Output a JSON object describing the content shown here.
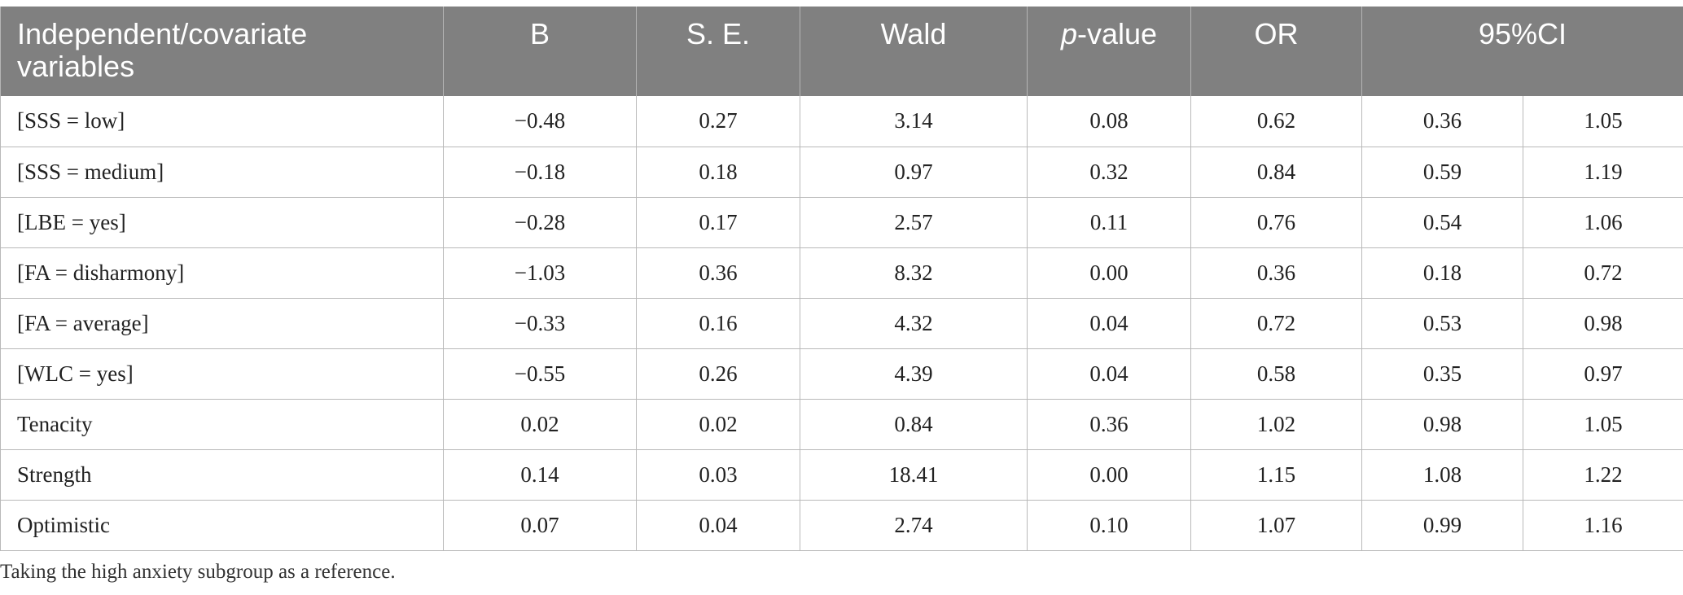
{
  "table": {
    "headers": {
      "variable": "Independent/covariate variables",
      "b": "B",
      "se": "S. E.",
      "wald": "Wald",
      "p_italic": "p",
      "p_rest": "-value",
      "or": "OR",
      "ci": "95%CI"
    },
    "rows": [
      {
        "variable": "[SSS = low]",
        "b": "−0.48",
        "se": "0.27",
        "wald": "3.14",
        "p": "0.08",
        "or": "0.62",
        "ci_low": "0.36",
        "ci_high": "1.05"
      },
      {
        "variable": "[SSS = medium]",
        "b": "−0.18",
        "se": "0.18",
        "wald": "0.97",
        "p": "0.32",
        "or": "0.84",
        "ci_low": "0.59",
        "ci_high": "1.19"
      },
      {
        "variable": "[LBE = yes]",
        "b": "−0.28",
        "se": "0.17",
        "wald": "2.57",
        "p": "0.11",
        "or": "0.76",
        "ci_low": "0.54",
        "ci_high": "1.06"
      },
      {
        "variable": "[FA = disharmony]",
        "b": "−1.03",
        "se": "0.36",
        "wald": "8.32",
        "p": "0.00",
        "or": "0.36",
        "ci_low": "0.18",
        "ci_high": "0.72"
      },
      {
        "variable": "[FA = average]",
        "b": "−0.33",
        "se": "0.16",
        "wald": "4.32",
        "p": "0.04",
        "or": "0.72",
        "ci_low": "0.53",
        "ci_high": "0.98"
      },
      {
        "variable": "[WLC = yes]",
        "b": "−0.55",
        "se": "0.26",
        "wald": "4.39",
        "p": "0.04",
        "or": "0.58",
        "ci_low": "0.35",
        "ci_high": "0.97"
      },
      {
        "variable": "Tenacity",
        "b": "0.02",
        "se": "0.02",
        "wald": "0.84",
        "p": "0.36",
        "or": "1.02",
        "ci_low": "0.98",
        "ci_high": "1.05"
      },
      {
        "variable": "Strength",
        "b": "0.14",
        "se": "0.03",
        "wald": "18.41",
        "p": "0.00",
        "or": "1.15",
        "ci_low": "1.08",
        "ci_high": "1.22"
      },
      {
        "variable": "Optimistic",
        "b": "0.07",
        "se": "0.04",
        "wald": "2.74",
        "p": "0.10",
        "or": "1.07",
        "ci_low": "0.99",
        "ci_high": "1.16"
      }
    ]
  },
  "footnote": "Taking the high anxiety subgroup as a reference.",
  "colors": {
    "header_bg": "#808080",
    "header_text": "#ffffff",
    "grid_line": "#b9b9b9"
  }
}
